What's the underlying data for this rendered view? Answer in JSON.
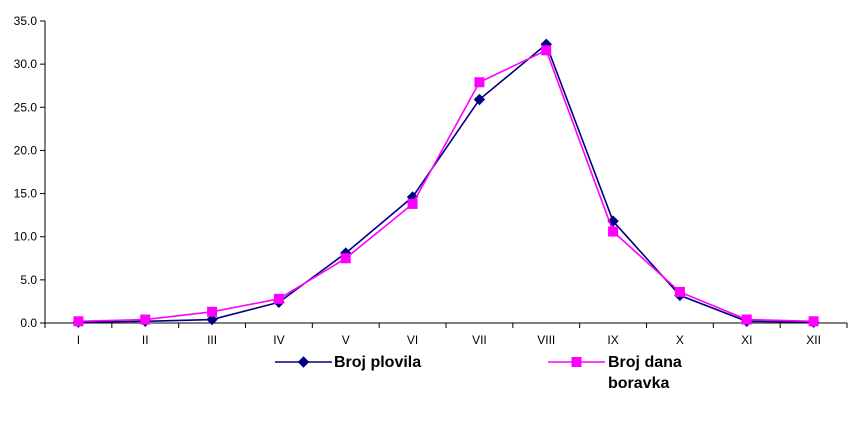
{
  "chart_data": {
    "type": "line",
    "categories": [
      "I",
      "II",
      "III",
      "IV",
      "V",
      "VI",
      "VII",
      "VIII",
      "IX",
      "X",
      "XI",
      "XII"
    ],
    "ylim": [
      0,
      35
    ],
    "ytick_labels": [
      "0.0",
      "5.0",
      "10.0",
      "15.0",
      "20.0",
      "25.0",
      "30.0",
      "35.0"
    ],
    "ytick_values": [
      0,
      5,
      10,
      15,
      20,
      25,
      30,
      35
    ],
    "grid": false,
    "legend_position": "bottom",
    "series": [
      {
        "name": "Broj plovila",
        "color": "#000080",
        "marker": "diamond",
        "values": [
          0.1,
          0.2,
          0.4,
          2.4,
          8.1,
          14.6,
          25.9,
          32.3,
          11.8,
          3.2,
          0.2,
          0.1
        ]
      },
      {
        "name": "Broj dana boravka",
        "legend_lines": [
          "Broj dana",
          "boravka"
        ],
        "color": "#FF00FF",
        "marker": "square",
        "values": [
          0.2,
          0.4,
          1.3,
          2.8,
          7.5,
          13.8,
          27.9,
          31.6,
          10.6,
          3.6,
          0.4,
          0.2
        ]
      }
    ]
  }
}
